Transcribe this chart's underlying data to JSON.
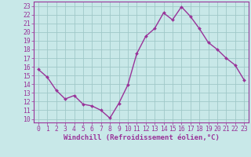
{
  "x": [
    0,
    1,
    2,
    3,
    4,
    5,
    6,
    7,
    8,
    9,
    10,
    11,
    12,
    13,
    14,
    15,
    16,
    17,
    18,
    19,
    20,
    21,
    22,
    23
  ],
  "y": [
    15.7,
    14.8,
    13.3,
    12.3,
    12.7,
    11.7,
    11.5,
    11.0,
    10.1,
    11.8,
    13.9,
    17.5,
    19.5,
    20.4,
    22.2,
    21.4,
    22.9,
    21.8,
    20.4,
    18.8,
    18.0,
    17.0,
    16.2,
    14.5
  ],
  "line_color": "#993399",
  "marker": "D",
  "marker_size": 2.0,
  "bg_color": "#c8e8e8",
  "grid_color": "#a0c8c8",
  "xlabel": "Windchill (Refroidissement éolien,°C)",
  "xlabel_fontsize": 6.5,
  "ylabel_ticks": [
    10,
    11,
    12,
    13,
    14,
    15,
    16,
    17,
    18,
    19,
    20,
    21,
    22,
    23
  ],
  "xlabel_ticks": [
    0,
    1,
    2,
    3,
    4,
    5,
    6,
    7,
    8,
    9,
    10,
    11,
    12,
    13,
    14,
    15,
    16,
    17,
    18,
    19,
    20,
    21,
    22,
    23
  ],
  "ylim": [
    9.6,
    23.5
  ],
  "xlim": [
    -0.5,
    23.5
  ],
  "tick_fontsize": 5.8,
  "line_width": 1.0
}
